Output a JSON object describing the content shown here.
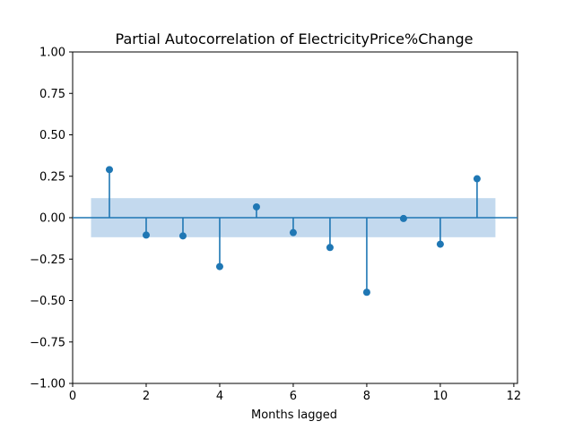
{
  "chart_data": {
    "type": "scatter",
    "title": "Partial Autocorrelation of ElectricityPrice%Change",
    "xlabel": "Months lagged",
    "ylabel": "",
    "xlim": [
      0,
      12.1
    ],
    "ylim": [
      -1.0,
      1.0
    ],
    "xticks": [
      0,
      2,
      4,
      6,
      8,
      10,
      12
    ],
    "xtick_labels": [
      "0",
      "2",
      "4",
      "6",
      "8",
      "10",
      "12"
    ],
    "yticks": [
      1.0,
      0.75,
      0.5,
      0.25,
      0.0,
      -0.25,
      -0.5,
      -0.75,
      -1.0
    ],
    "ytick_labels": [
      "1.00",
      "0.75",
      "0.50",
      "0.25",
      "0.00",
      "−0.25",
      "−0.50",
      "−0.75",
      "−1.00"
    ],
    "grid": false,
    "confidence_band": {
      "x_range": [
        0.5,
        11.5
      ],
      "lower": -0.118,
      "upper": 0.118
    },
    "x": [
      1,
      2,
      3,
      4,
      5,
      6,
      7,
      8,
      9,
      10,
      11
    ],
    "values": [
      0.29,
      -0.105,
      -0.11,
      -0.295,
      0.065,
      -0.09,
      -0.18,
      -0.45,
      -0.005,
      -0.16,
      0.235
    ],
    "colors": {
      "stem": "#1f77b4",
      "marker": "#1f77b4",
      "band": "#c3d9ee",
      "axes": "#000000"
    }
  }
}
